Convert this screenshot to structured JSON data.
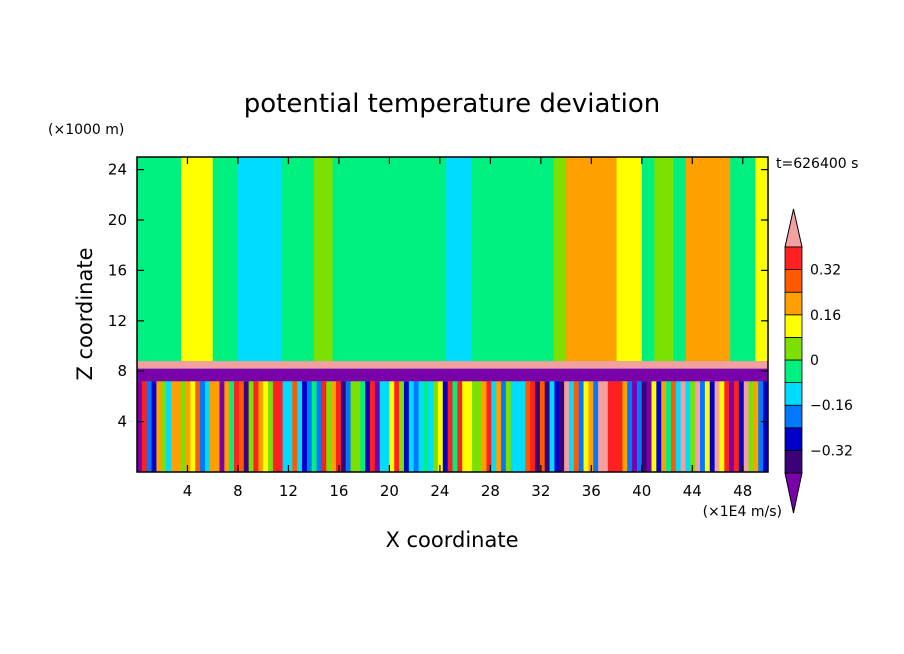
{
  "chart_data": {
    "type": "heatmap",
    "title": "potential temperature deviation",
    "xlabel": "X coordinate",
    "ylabel": "Z coordinate",
    "x_unit": "(×1E4 m/s)",
    "y_unit": "(×1000 m)",
    "time_label": "t=626400 s",
    "xlim": [
      0,
      50
    ],
    "ylim": [
      0,
      25
    ],
    "x_ticks": [
      4,
      8,
      12,
      16,
      20,
      24,
      28,
      32,
      36,
      40,
      44,
      48
    ],
    "y_ticks": [
      4,
      8,
      12,
      16,
      20,
      24
    ],
    "colorbar": {
      "levels": [
        -0.48,
        -0.4,
        -0.32,
        -0.24,
        -0.16,
        -0.08,
        0,
        0.08,
        0.16,
        0.24,
        0.32,
        0.4
      ],
      "labeled_levels": [
        0.32,
        0.16,
        0,
        -0.16,
        -0.32
      ],
      "labels": [
        "0.32",
        "0.16",
        "0",
        "−0.16",
        "−0.32"
      ],
      "colors": [
        "#7a00aa",
        "#3c007a",
        "#0000c8",
        "#0078ff",
        "#00dcff",
        "#00f080",
        "#7ee000",
        "#ffff00",
        "#ffa000",
        "#ff5a00",
        "#ff2020",
        "#f5a0a0"
      ]
    },
    "layers": [
      {
        "z_from": 8.2,
        "z_to": 8.8,
        "value": 0.45
      },
      {
        "z_from": 7.2,
        "z_to": 8.2,
        "value": -0.48
      }
    ],
    "upper_columns": [
      {
        "x_from": 0,
        "x_to": 1.5,
        "value": -0.06
      },
      {
        "x_from": 3.5,
        "x_to": 6,
        "value": 0.1
      },
      {
        "x_from": 8,
        "x_to": 11.5,
        "value": -0.09
      },
      {
        "x_from": 14,
        "x_to": 15.5,
        "value": 0.02
      },
      {
        "x_from": 18,
        "x_to": 20,
        "value": -0.07
      },
      {
        "x_from": 24.5,
        "x_to": 26.5,
        "value": -0.1
      },
      {
        "x_from": 29.5,
        "x_to": 31,
        "value": -0.06
      },
      {
        "x_from": 33,
        "x_to": 34,
        "value": 0.06
      },
      {
        "x_from": 34,
        "x_to": 38,
        "value": 0.2
      },
      {
        "x_from": 38,
        "x_to": 40,
        "value": 0.12
      },
      {
        "x_from": 41,
        "x_to": 42.5,
        "value": 0.05
      },
      {
        "x_from": 43.5,
        "x_to": 47,
        "value": 0.2
      },
      {
        "x_from": 49,
        "x_to": 50,
        "value": 0.1
      }
    ]
  }
}
